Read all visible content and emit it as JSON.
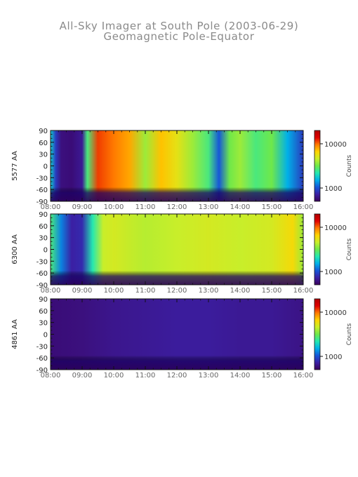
{
  "figure": {
    "title": "All-Sky Imager at South Pole (2003-06-29)",
    "subtitle": "Geomagnetic Pole-Equator"
  },
  "colors": {
    "axis": "#111111",
    "colorscale": [
      "#3a0059",
      "#3b1fa3",
      "#1656d8",
      "#00b0e8",
      "#25e8b0",
      "#6fe84a",
      "#c8ee2a",
      "#ffd400",
      "#ff7a00",
      "#e00000",
      "#b00000"
    ]
  },
  "chart_data": [
    {
      "type": "heatmap",
      "ylabel": "5577 AA",
      "x_ticks": [
        "08:00",
        "09:00",
        "10:00",
        "11:00",
        "12:00",
        "13:00",
        "14:00",
        "15:00",
        "16:00"
      ],
      "y_ticks": [
        "90",
        "60",
        "30",
        "0",
        "-30",
        "-60",
        "-90"
      ],
      "xlim": [
        "08:00",
        "16:00"
      ],
      "ylim": [
        -90,
        90
      ],
      "colorbar": {
        "label": "Counts",
        "ticks": [
          "10000",
          "1000"
        ],
        "scale": "log",
        "range": [
          500,
          20000
        ]
      },
      "intensity_profile": [
        {
          "t": "08:00",
          "level": 0.35
        },
        {
          "t": "08:10",
          "level": 0.15
        },
        {
          "t": "08:20",
          "level": 0.05
        },
        {
          "t": "08:40",
          "level": 0.04
        },
        {
          "t": "09:00",
          "level": 0.08
        },
        {
          "t": "09:10",
          "level": 0.45
        },
        {
          "t": "09:30",
          "level": 0.85
        },
        {
          "t": "10:00",
          "level": 0.8
        },
        {
          "t": "10:30",
          "level": 0.75
        },
        {
          "t": "11:00",
          "level": 0.55
        },
        {
          "t": "11:30",
          "level": 0.72
        },
        {
          "t": "12:00",
          "level": 0.65
        },
        {
          "t": "12:30",
          "level": 0.55
        },
        {
          "t": "13:00",
          "level": 0.45
        },
        {
          "t": "13:20",
          "level": 0.2
        },
        {
          "t": "13:40",
          "level": 0.5
        },
        {
          "t": "14:00",
          "level": 0.55
        },
        {
          "t": "14:30",
          "level": 0.45
        },
        {
          "t": "15:00",
          "level": 0.5
        },
        {
          "t": "15:30",
          "level": 0.3
        },
        {
          "t": "16:00",
          "level": 0.15
        }
      ]
    },
    {
      "type": "heatmap",
      "ylabel": "6300 AA",
      "x_ticks": [
        "08:00",
        "09:00",
        "10:00",
        "11:00",
        "12:00",
        "13:00",
        "14:00",
        "15:00",
        "16:00"
      ],
      "y_ticks": [
        "90",
        "60",
        "30",
        "0",
        "-30",
        "-60",
        "-90"
      ],
      "xlim": [
        "08:00",
        "16:00"
      ],
      "ylim": [
        -90,
        90
      ],
      "colorbar": {
        "label": "Counts",
        "ticks": [
          "10000",
          "1000"
        ],
        "scale": "log",
        "range": [
          500,
          20000
        ]
      },
      "intensity_profile": [
        {
          "t": "08:00",
          "level": 0.45
        },
        {
          "t": "08:20",
          "level": 0.25
        },
        {
          "t": "08:40",
          "level": 0.1
        },
        {
          "t": "09:00",
          "level": 0.12
        },
        {
          "t": "09:20",
          "level": 0.4
        },
        {
          "t": "09:40",
          "level": 0.6
        },
        {
          "t": "10:00",
          "level": 0.62
        },
        {
          "t": "11:00",
          "level": 0.58
        },
        {
          "t": "12:00",
          "level": 0.6
        },
        {
          "t": "13:00",
          "level": 0.62
        },
        {
          "t": "14:00",
          "level": 0.6
        },
        {
          "t": "15:00",
          "level": 0.62
        },
        {
          "t": "15:40",
          "level": 0.68
        },
        {
          "t": "16:00",
          "level": 0.55
        }
      ]
    },
    {
      "type": "heatmap",
      "ylabel": "4861 AA",
      "x_ticks": [
        "08:00",
        "09:00",
        "10:00",
        "11:00",
        "12:00",
        "13:00",
        "14:00",
        "15:00",
        "16:00"
      ],
      "y_ticks": [
        "90",
        "60",
        "30",
        "0",
        "-30",
        "-60",
        "-90"
      ],
      "xlim": [
        "08:00",
        "16:00"
      ],
      "ylim": [
        -90,
        90
      ],
      "colorbar": {
        "label": "Counts",
        "ticks": [
          "10000",
          "1000"
        ],
        "scale": "log",
        "range": [
          500,
          20000
        ]
      },
      "intensity_profile": [
        {
          "t": "08:00",
          "level": 0.04
        },
        {
          "t": "09:00",
          "level": 0.05
        },
        {
          "t": "10:00",
          "level": 0.07
        },
        {
          "t": "11:00",
          "level": 0.08
        },
        {
          "t": "12:00",
          "level": 0.09
        },
        {
          "t": "13:00",
          "level": 0.09
        },
        {
          "t": "14:00",
          "level": 0.08
        },
        {
          "t": "15:00",
          "level": 0.08
        },
        {
          "t": "16:00",
          "level": 0.06
        }
      ]
    }
  ]
}
